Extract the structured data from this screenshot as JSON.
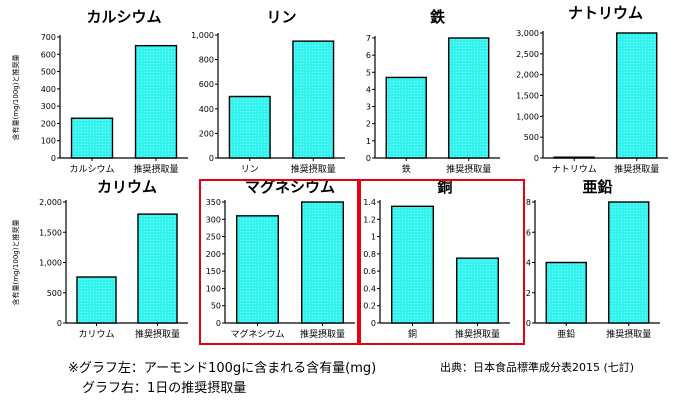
{
  "chart_data": [
    {
      "type": "bar",
      "title": "カルシウム",
      "ylabel": "含有量(mg/100g)と推奨量",
      "categories": [
        "カルシウム",
        "推奨摂取量"
      ],
      "values": [
        230,
        650
      ],
      "ylim": [
        0,
        700
      ],
      "yticks": [
        "0",
        "100",
        "200",
        "300",
        "400",
        "500",
        "600",
        "700"
      ],
      "highlight": false
    },
    {
      "type": "bar",
      "title": "リン",
      "ylabel": "",
      "categories": [
        "リン",
        "推奨摂取量"
      ],
      "values": [
        500,
        950
      ],
      "ylim": [
        0,
        1000
      ],
      "yticks": [
        "0",
        "200",
        "400",
        "600",
        "800",
        "1,000"
      ],
      "highlight": false
    },
    {
      "type": "bar",
      "title": "鉄",
      "ylabel": "",
      "categories": [
        "鉄",
        "推奨摂取量"
      ],
      "values": [
        4.7,
        7.0
      ],
      "ylim": [
        0,
        7
      ],
      "yticks": [
        "0",
        "1",
        "2",
        "3",
        "4",
        "5",
        "6",
        "7"
      ],
      "highlight": false
    },
    {
      "type": "bar",
      "title": "ナトリウム",
      "ylabel": "",
      "categories": [
        "ナトリウム",
        "推奨摂取量"
      ],
      "values": [
        1,
        3000
      ],
      "ylim": [
        0,
        3000
      ],
      "yticks": [
        "0",
        "500",
        "1,000",
        "1,500",
        "2,000",
        "2,500",
        "3,000"
      ],
      "highlight": false
    },
    {
      "type": "bar",
      "title": "カリウム",
      "ylabel": "含有量(mg/100g)と推奨量",
      "categories": [
        "カリウム",
        "推奨摂取量"
      ],
      "values": [
        760,
        1800
      ],
      "ylim": [
        0,
        2000
      ],
      "yticks": [
        "0",
        "500",
        "1,000",
        "1,500",
        "2,000"
      ],
      "highlight": false
    },
    {
      "type": "bar",
      "title": "マグネシウム",
      "ylabel": "",
      "categories": [
        "マグネシウム",
        "推奨摂取量"
      ],
      "values": [
        310,
        350
      ],
      "ylim": [
        0,
        350
      ],
      "yticks": [
        "0",
        "50",
        "100",
        "150",
        "200",
        "250",
        "300",
        "350"
      ],
      "highlight": true
    },
    {
      "type": "bar",
      "title": "銅",
      "ylabel": "",
      "categories": [
        "銅",
        "推奨摂取量"
      ],
      "values": [
        1.35,
        0.75
      ],
      "ylim": [
        0,
        1.4
      ],
      "yticks": [
        "0",
        "0.2",
        "0.4",
        "0.6",
        "0.8",
        "1",
        "1.2",
        "1.4"
      ],
      "highlight": true
    },
    {
      "type": "bar",
      "title": "亜鉛",
      "ylabel": "",
      "categories": [
        "亜鉛",
        "推奨摂取量"
      ],
      "values": [
        4,
        8
      ],
      "ylim": [
        0,
        8
      ],
      "yticks": [
        "0",
        "2",
        "4",
        "6",
        "8"
      ],
      "highlight": false
    }
  ],
  "colors": {
    "bar_fill": "#33f3ef",
    "bar_stroke": "#000000",
    "highlight_border": "#e60012"
  },
  "notes": {
    "line1": "※グラフ左：アーモンド100gに含まれる含有量(mg)",
    "line2": "グラフ右：1日の推奨摂取量"
  },
  "source": "出典：日本食品標準成分表2015 (七訂)"
}
